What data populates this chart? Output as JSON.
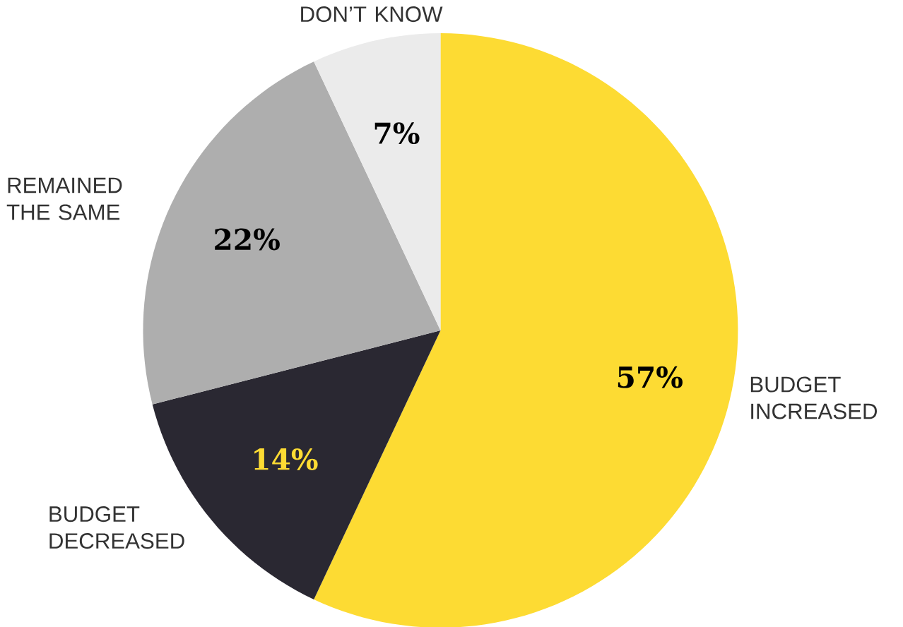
{
  "chart_data": {
    "type": "pie",
    "categories": [
      "BUDGET INCREASED",
      "BUDGET DECREASED",
      "REMAINED THE SAME",
      "DON’T KNOW"
    ],
    "values": [
      57,
      14,
      22,
      7
    ],
    "value_labels": [
      "57%",
      "14%",
      "22%",
      "7%"
    ],
    "colors": [
      "#fddb33",
      "#2a2832",
      "#aeaeae",
      "#ebebeb"
    ]
  }
}
